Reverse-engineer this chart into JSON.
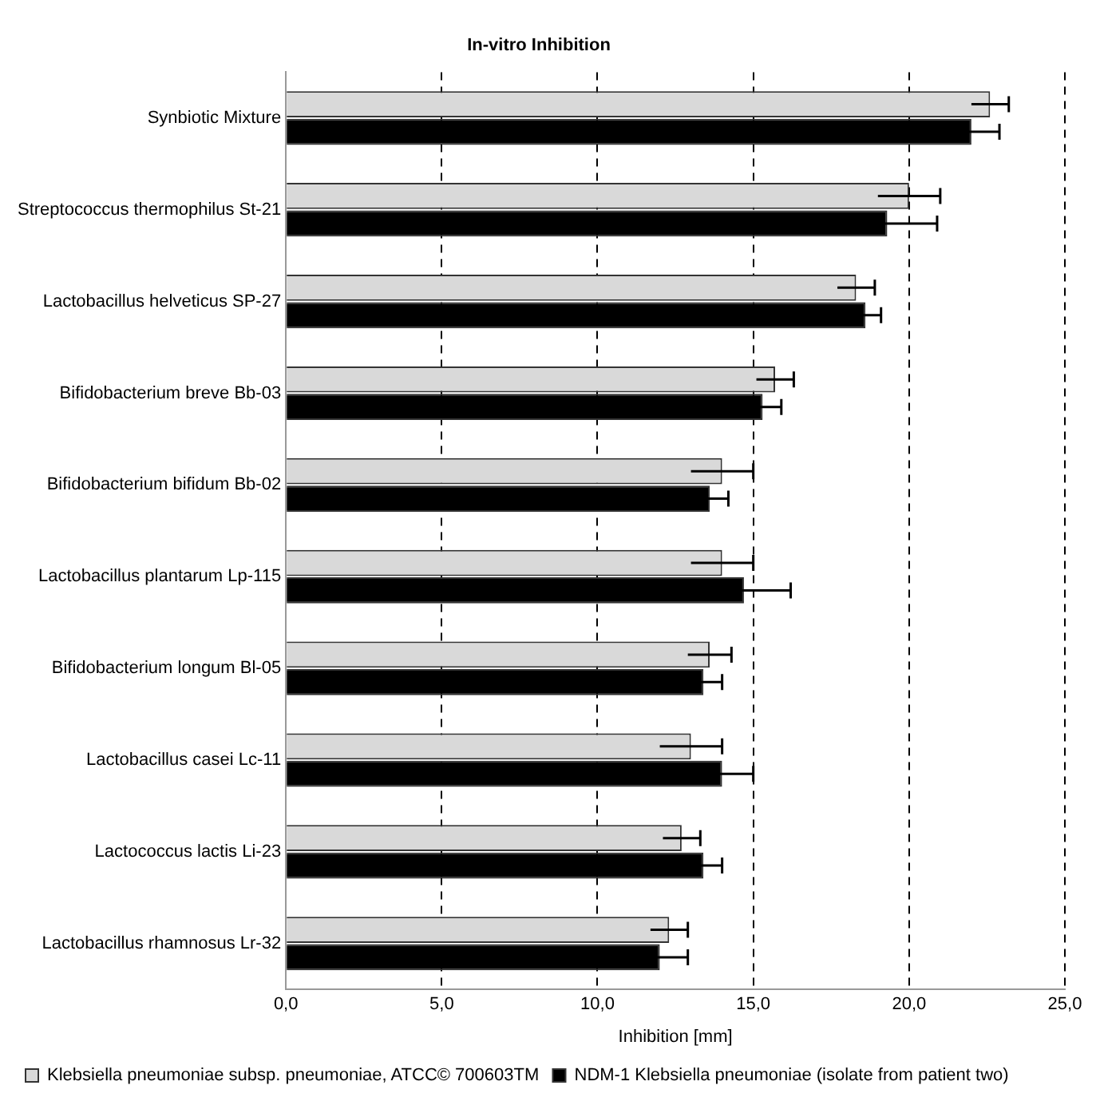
{
  "chart_data": {
    "type": "bar",
    "orientation": "horizontal",
    "title": "In-vitro Inhibition",
    "xlabel": "Inhibition [mm]",
    "categories": [
      "Synbiotic Mixture",
      "Streptococcus thermophilus St-21",
      "Lactobacillus helveticus SP-27",
      "Bifidobacterium breve Bb-03",
      "Bifidobacterium bifidum Bb-02",
      "Lactobacillus plantarum Lp-115",
      "Bifidobacterium longum Bl-05",
      "Lactobacillus casei Lc-11",
      "Lactococcus lactis Li-23",
      "Lactobacillus rhamnosus Lr-32"
    ],
    "series": [
      {
        "name": "Klebsiella pneumoniae subsp. pneumoniae, ATCC© 700603TM",
        "color": "#d9d9d9",
        "values": [
          22.6,
          20.0,
          18.3,
          15.7,
          14.0,
          14.0,
          13.6,
          13.0,
          12.7,
          12.3
        ],
        "errors": [
          0.6,
          1.0,
          0.6,
          0.6,
          1.0,
          1.0,
          0.7,
          1.0,
          0.6,
          0.6
        ]
      },
      {
        "name": "NDM-1 Klebsiella pneumoniae (isolate from patient two)",
        "color": "#000000",
        "values": [
          22.0,
          19.3,
          18.6,
          15.3,
          13.6,
          14.7,
          13.4,
          14.0,
          13.4,
          12.0
        ],
        "errors": [
          0.9,
          1.6,
          0.5,
          0.6,
          0.6,
          1.5,
          0.6,
          1.0,
          0.6,
          0.9
        ]
      }
    ],
    "xlim": [
      0,
      25
    ],
    "xticks": [
      {
        "value": 0,
        "label": "0,0"
      },
      {
        "value": 5,
        "label": "5,0"
      },
      {
        "value": 10,
        "label": "10,0"
      },
      {
        "value": 15,
        "label": "15,0"
      },
      {
        "value": 20,
        "label": "20,0"
      },
      {
        "value": 25,
        "label": "25,0"
      }
    ],
    "grid": "x",
    "line_style": "dashed",
    "legend": "bottom"
  }
}
